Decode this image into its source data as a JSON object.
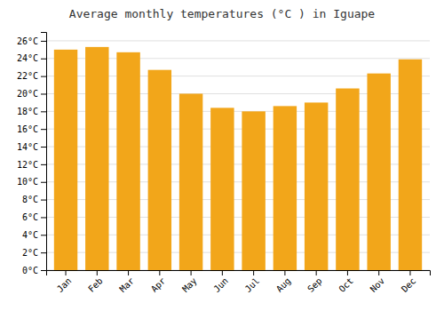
{
  "chart_data": {
    "type": "bar",
    "title": "Average monthly temperatures (°C ) in Iguape",
    "categories": [
      "Jan",
      "Feb",
      "Mar",
      "Apr",
      "May",
      "Jun",
      "Jul",
      "Aug",
      "Sep",
      "Oct",
      "Nov",
      "Dec"
    ],
    "values": [
      25.0,
      25.3,
      24.7,
      22.7,
      20.0,
      18.4,
      18.0,
      18.6,
      19.0,
      20.6,
      22.3,
      23.9
    ],
    "color": "#F2A61A",
    "ylim": [
      0,
      27
    ],
    "yticks": [
      {
        "value": 0,
        "label": "0°C"
      },
      {
        "value": 2,
        "label": "2°C"
      },
      {
        "value": 4,
        "label": "4°C"
      },
      {
        "value": 6,
        "label": "6°C"
      },
      {
        "value": 8,
        "label": "8°C"
      },
      {
        "value": 10,
        "label": "10°C"
      },
      {
        "value": 12,
        "label": "12°C"
      },
      {
        "value": 14,
        "label": "14°C"
      },
      {
        "value": 16,
        "label": "16°C"
      },
      {
        "value": 18,
        "label": "18°C"
      },
      {
        "value": 20,
        "label": "20°C"
      },
      {
        "value": 22,
        "label": "22°C"
      },
      {
        "value": 24,
        "label": "24°C"
      },
      {
        "value": 26,
        "label": "26°C"
      }
    ],
    "grid": true
  }
}
